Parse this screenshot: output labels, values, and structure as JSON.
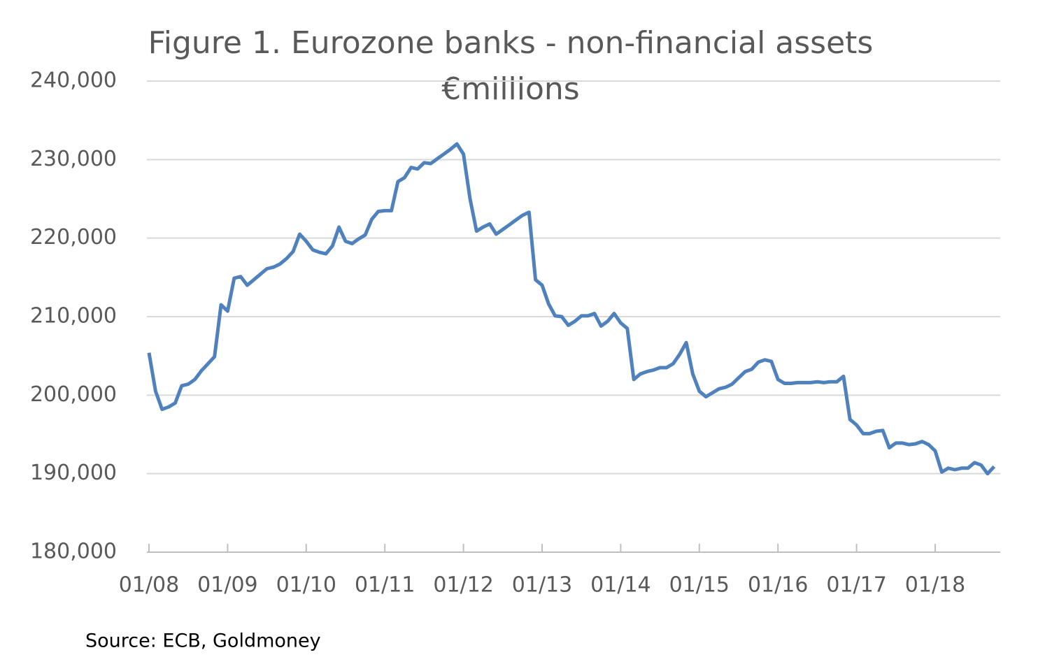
{
  "chart_data": {
    "type": "line",
    "title": "Figure 1. Eurozone banks - non-financial assets",
    "subtitle": "€millions",
    "source": "Source: ECB, Goldmoney",
    "categories": [
      "01/08",
      null,
      null,
      null,
      null,
      null,
      null,
      null,
      null,
      null,
      null,
      null,
      "01/09",
      null,
      null,
      null,
      null,
      null,
      null,
      null,
      null,
      null,
      null,
      null,
      "01/10",
      null,
      null,
      null,
      null,
      null,
      null,
      null,
      null,
      null,
      null,
      null,
      "01/11",
      null,
      null,
      null,
      null,
      null,
      null,
      null,
      null,
      null,
      null,
      null,
      "01/12",
      null,
      null,
      null,
      null,
      null,
      null,
      null,
      null,
      null,
      null,
      null,
      "01/13",
      null,
      null,
      null,
      null,
      null,
      null,
      null,
      null,
      null,
      null,
      null,
      "01/14",
      null,
      null,
      null,
      null,
      null,
      null,
      null,
      null,
      null,
      null,
      null,
      "01/15",
      null,
      null,
      null,
      null,
      null,
      null,
      null,
      null,
      null,
      null,
      null,
      "01/16",
      null,
      null,
      null,
      null,
      null,
      null,
      null,
      null,
      null,
      null,
      null,
      "01/17",
      null,
      null,
      null,
      null,
      null,
      null,
      null,
      null,
      null,
      null,
      null,
      "01/18",
      null,
      null,
      null,
      null,
      null,
      null,
      null,
      null,
      null
    ],
    "series": [
      {
        "name": "Non-financial assets",
        "color": "#4f81bd",
        "values": [
          205400,
          200500,
          198200,
          198500,
          199000,
          201200,
          201400,
          202000,
          203100,
          204000,
          204900,
          211500,
          210700,
          214900,
          215100,
          214000,
          214700,
          215400,
          216100,
          216300,
          216700,
          217400,
          218300,
          220500,
          219600,
          218500,
          218200,
          218000,
          219000,
          221400,
          219600,
          219300,
          219900,
          220400,
          222400,
          223400,
          223500,
          223500,
          227200,
          227700,
          229000,
          228800,
          229600,
          229500,
          230100,
          230700,
          231300,
          232000,
          230700,
          225000,
          220900,
          221400,
          221800,
          220500,
          221100,
          221700,
          222300,
          222900,
          223300,
          214700,
          214000,
          211600,
          210100,
          210000,
          208900,
          209400,
          210100,
          210100,
          210400,
          208800,
          209400,
          210400,
          209200,
          208500,
          202000,
          202700,
          203000,
          203200,
          203500,
          203500,
          204000,
          205200,
          206700,
          202700,
          200500,
          199800,
          200300,
          200800,
          201000,
          201400,
          202200,
          203000,
          203300,
          204200,
          204500,
          204300,
          202000,
          201500,
          201500,
          201600,
          201600,
          201600,
          201700,
          201600,
          201700,
          201700,
          202400,
          196900,
          196200,
          195100,
          195100,
          195400,
          195500,
          193300,
          193900,
          193900,
          193700,
          193800,
          194100,
          193700,
          192900,
          190200,
          190700,
          190500,
          190700,
          190700,
          191400,
          191100,
          190000,
          190900
        ]
      }
    ],
    "ylim": [
      180000,
      240000
    ],
    "yticks": [
      {
        "value": 180000,
        "label": "180,000"
      },
      {
        "value": 190000,
        "label": "190,000"
      },
      {
        "value": 200000,
        "label": "200,000"
      },
      {
        "value": 210000,
        "label": "210,000"
      },
      {
        "value": 220000,
        "label": "220,000"
      },
      {
        "value": 230000,
        "label": "230,000"
      },
      {
        "value": 240000,
        "label": "240,000"
      }
    ],
    "grid": true
  }
}
